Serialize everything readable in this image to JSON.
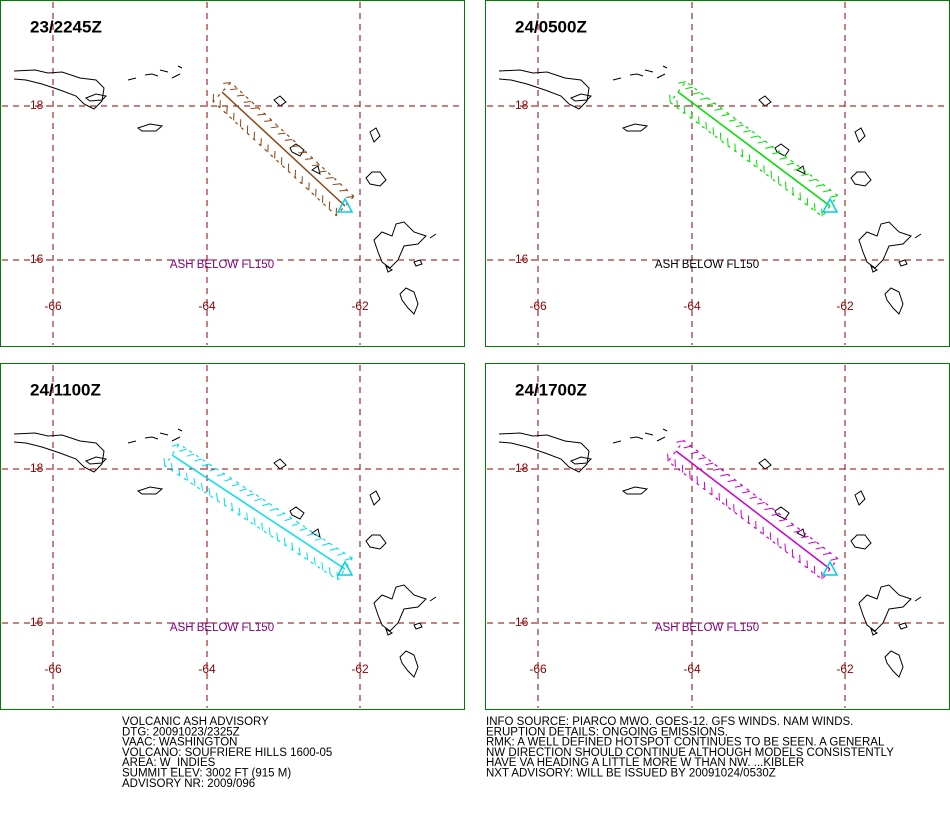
{
  "panels": [
    {
      "time": "23/2245Z",
      "note": "ASH BELOW FL150",
      "plume_color": "#8b4513",
      "note_color": "#800080"
    },
    {
      "time": "24/0500Z",
      "note": "ASH BELOW FL150",
      "plume_color": "#00e000",
      "note_color": "#000000"
    },
    {
      "time": "24/1100Z",
      "note": "ASH BELOW FL150",
      "plume_color": "#00e0ee",
      "note_color": "#800080"
    },
    {
      "time": "24/1700Z",
      "note": "ASH BELOW FL150",
      "plume_color": "#cc00cc",
      "note_color": "#800080"
    }
  ],
  "graticule": {
    "lon_labels": [
      "-66",
      "-64",
      "-62"
    ],
    "lat_labels": [
      "18",
      "16"
    ],
    "color": "#8b0000",
    "frame_color": "#008000"
  },
  "advisory": {
    "left": [
      "VOLCANIC ASH ADVISORY",
      "DTG: 20091023/2325Z",
      "VAAC: WASHINGTON",
      "VOLCANO: SOUFRIERE HILLS 1600-05",
      "AREA: W_INDIES",
      "SUMMIT ELEV: 3002 FT (915 M)",
      "ADVISORY NR: 2009/096"
    ],
    "right": [
      "INFO SOURCE: PIARCO MWO. GOES-12. GFS WINDS. NAM WINDS.",
      "ERUPTION DETAILS: ONGOING EMISSIONS.",
      "RMK: A WELL DEFINED HOTSPOT CONTINUES TO BE SEEN. A GENERAL",
      "NW DIRECTION SHOULD CONTINUE ALTHOUGH MODELS CONSISTENTLY",
      "HAVE VA HEADING A LITTLE MORE W THAN NW. ...KIBLER",
      "NXT ADVISORY: WILL BE ISSUED BY 20091024/0530Z"
    ]
  }
}
